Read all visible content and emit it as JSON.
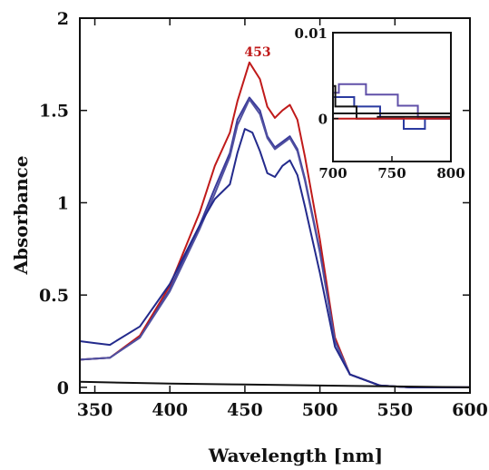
{
  "chart_data": {
    "type": "line",
    "title": "",
    "xlabel": "Wavelength [nm]",
    "ylabel": "Absorbance",
    "xlim": [
      340,
      600
    ],
    "ylim": [
      -0.03,
      2.0
    ],
    "x_ticks": [
      350,
      400,
      450,
      500,
      550,
      600
    ],
    "y_ticks": [
      0,
      0.5,
      1,
      1.5,
      2
    ],
    "x_tick_labels": [
      "350",
      "400",
      "450",
      "500",
      "550",
      "600"
    ],
    "y_tick_labels": [
      "0",
      "0.5",
      "1",
      "1.5",
      "2"
    ],
    "grid": false,
    "annotation": {
      "text": "453",
      "x": 453,
      "y": 1.76,
      "color": "#c01a1a"
    },
    "series": [
      {
        "color": "#c01a1a",
        "x": [
          340,
          360,
          380,
          400,
          420,
          430,
          440,
          445,
          453,
          460,
          465,
          470,
          475,
          480,
          485,
          490,
          500,
          510,
          520,
          540,
          560,
          600
        ],
        "y": [
          0.15,
          0.16,
          0.28,
          0.55,
          0.95,
          1.2,
          1.38,
          1.55,
          1.76,
          1.67,
          1.52,
          1.46,
          1.5,
          1.53,
          1.45,
          1.25,
          0.8,
          0.27,
          0.07,
          0.01,
          0.0,
          0.0
        ]
      },
      {
        "color": "#3a3a9a",
        "x": [
          340,
          360,
          380,
          400,
          420,
          430,
          440,
          445,
          453,
          460,
          465,
          470,
          475,
          480,
          485,
          490,
          500,
          510,
          520,
          540,
          560,
          600
        ],
        "y": [
          0.15,
          0.16,
          0.27,
          0.53,
          0.88,
          1.08,
          1.27,
          1.45,
          1.57,
          1.5,
          1.36,
          1.3,
          1.33,
          1.36,
          1.29,
          1.13,
          0.74,
          0.25,
          0.07,
          0.01,
          0.0,
          0.0
        ]
      },
      {
        "color": "#5050a0",
        "x": [
          340,
          360,
          380,
          400,
          420,
          430,
          440,
          445,
          453,
          460,
          465,
          470,
          475,
          480,
          485,
          490,
          500,
          510,
          520,
          540,
          560,
          600
        ],
        "y": [
          0.15,
          0.16,
          0.27,
          0.52,
          0.86,
          1.05,
          1.25,
          1.42,
          1.56,
          1.48,
          1.35,
          1.29,
          1.32,
          1.35,
          1.28,
          1.12,
          0.73,
          0.25,
          0.07,
          0.01,
          0.0,
          0.0
        ]
      },
      {
        "color": "#232a8c",
        "x": [
          340,
          350,
          360,
          380,
          400,
          420,
          430,
          440,
          445,
          450,
          455,
          460,
          465,
          470,
          475,
          480,
          485,
          490,
          500,
          510,
          520,
          540,
          560,
          600
        ],
        "y": [
          0.25,
          0.24,
          0.23,
          0.33,
          0.56,
          0.88,
          1.02,
          1.1,
          1.27,
          1.4,
          1.38,
          1.28,
          1.16,
          1.14,
          1.2,
          1.23,
          1.15,
          0.98,
          0.62,
          0.22,
          0.07,
          0.01,
          0.0,
          0.0
        ]
      },
      {
        "color": "#111111",
        "x": [
          340,
          400,
          450,
          500,
          550,
          600
        ],
        "y": [
          0.03,
          0.02,
          0.015,
          0.01,
          0.005,
          0.0
        ]
      }
    ],
    "inset": {
      "xlim": [
        700,
        800
      ],
      "ylim": [
        -0.005,
        0.01
      ],
      "x_ticks": [
        700,
        750,
        800
      ],
      "y_ticks": [
        0,
        0.01
      ],
      "x_tick_labels": [
        "700",
        "750",
        "800"
      ],
      "y_tick_labels": [
        "0",
        "0.01"
      ],
      "series": [
        {
          "color": "#6050a8",
          "x": [
            700,
            705,
            705,
            728,
            728,
            755,
            755,
            772,
            772,
            800
          ],
          "y": [
            0.003,
            0.003,
            0.004,
            0.004,
            0.0028,
            0.0028,
            0.0015,
            0.0015,
            0.0,
            0.0
          ]
        },
        {
          "color": "#2a3aa0",
          "x": [
            700,
            718,
            718,
            740,
            740,
            760,
            760,
            778,
            778,
            800
          ],
          "y": [
            0.0025,
            0.0025,
            0.0014,
            0.0014,
            0.0,
            0.0,
            -0.0012,
            -0.0012,
            0.0,
            0.0
          ]
        },
        {
          "color": "#111111",
          "x": [
            700,
            702,
            702,
            720,
            720,
            738,
            738,
            800
          ],
          "y": [
            0.0038,
            0.0038,
            0.0014,
            0.0014,
            0.0,
            0.0,
            0.0002,
            0.0002
          ]
        },
        {
          "color": "#111111",
          "x": [
            700,
            800
          ],
          "y": [
            0.0006,
            0.0006
          ]
        },
        {
          "color": "#c01a1a",
          "x": [
            700,
            800
          ],
          "y": [
            0.0,
            0.0
          ]
        }
      ]
    }
  }
}
